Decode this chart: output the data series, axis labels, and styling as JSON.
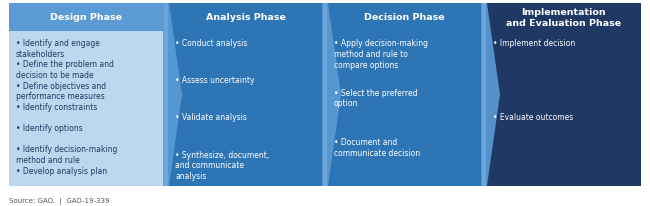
{
  "phases": [
    {
      "title": "Design Phase",
      "bullets": [
        "Identify and engage\nstakeholders",
        "Define the problem and\ndecision to be made",
        "Define objectives and\nperformance measures",
        "Identify constraints",
        "Identify options",
        "Identify decision-making\nmethod and rule",
        "Develop analysis plan"
      ],
      "header_color": "#5b9bd5",
      "body_color": "#bdd7ee",
      "text_color": "#1f3864",
      "header_text_color": "#ffffff",
      "is_last": false
    },
    {
      "title": "Analysis Phase",
      "bullets": [
        "Conduct analysis",
        "Assess uncertainty",
        "Validate analysis",
        "Synthesize, document,\nand communicate\nanalysis"
      ],
      "header_color": "#2e75b6",
      "body_color": "#2e75b6",
      "text_color": "#ffffff",
      "header_text_color": "#ffffff",
      "is_last": false
    },
    {
      "title": "Decision Phase",
      "bullets": [
        "Apply decision-making\nmethod and rule to\ncompare options",
        "Select the preferred\noption",
        "Document and\ncommunicate decision"
      ],
      "header_color": "#2e75b6",
      "body_color": "#2e75b6",
      "text_color": "#ffffff",
      "header_text_color": "#ffffff",
      "is_last": false
    },
    {
      "title": "Implementation\nand Evaluation Phase",
      "bullets": [
        "Implement decision",
        "Evaluate outcomes"
      ],
      "header_color": "#1f3864",
      "body_color": "#1f3864",
      "text_color": "#ffffff",
      "header_text_color": "#ffffff",
      "is_last": true
    }
  ],
  "arrow_colors": [
    "#5b9bd5",
    "#5b9bd5",
    "#5b9bd5"
  ],
  "source_text": "Source: GAO.  |  GAO-19-339",
  "background_color": "#ffffff",
  "fig_width": 6.5,
  "fig_height": 2.07,
  "dpi": 100
}
